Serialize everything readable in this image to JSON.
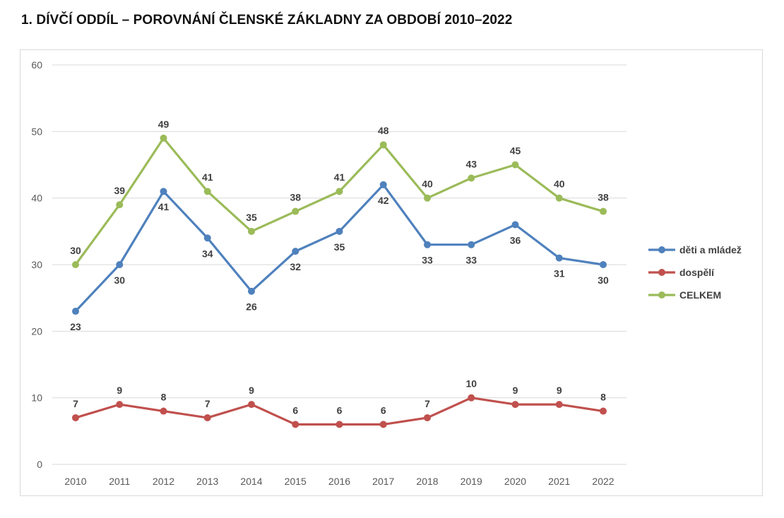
{
  "page": {
    "heading": "1. DÍVČÍ ODDÍL – POROVNÁNÍ ČLENSKÉ ZÁKLADNY ZA OBDOBÍ 2010–2022"
  },
  "chart_data": {
    "type": "line",
    "title": "",
    "xlabel": "",
    "ylabel": "",
    "x": [
      "2010",
      "2011",
      "2012",
      "2013",
      "2014",
      "2015",
      "2016",
      "2017",
      "2018",
      "2019",
      "2020",
      "2021",
      "2022"
    ],
    "ylim": [
      0,
      60
    ],
    "yticks": [
      0,
      10,
      20,
      30,
      40,
      50,
      60
    ],
    "grid": true,
    "legend_position": "right",
    "series": [
      {
        "name": "děti a mládež",
        "color": "#4f81bd",
        "label_position": "auto",
        "values": [
          23,
          30,
          41,
          34,
          26,
          32,
          35,
          42,
          33,
          33,
          36,
          31,
          30
        ]
      },
      {
        "name": "dospělí",
        "color": "#c0504d",
        "label_position": "above",
        "values": [
          7,
          9,
          8,
          7,
          9,
          6,
          6,
          6,
          7,
          10,
          9,
          9,
          8
        ]
      },
      {
        "name": "CELKEM",
        "color": "#9bbb59",
        "label_position": "above",
        "values": [
          30,
          39,
          49,
          41,
          35,
          38,
          41,
          48,
          40,
          43,
          45,
          40,
          38
        ]
      }
    ]
  }
}
